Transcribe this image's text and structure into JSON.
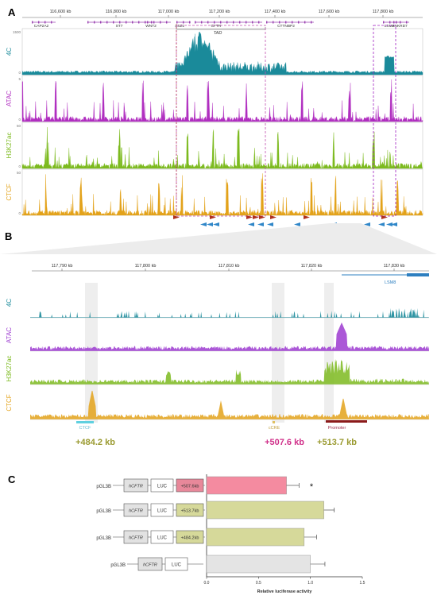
{
  "panels": {
    "a": {
      "label": "A",
      "ticks": [
        "116,600 kb",
        "116,800 kb",
        "117,000 kb",
        "117,200 kb",
        "117,400 kb",
        "117,600 kb",
        "117,800 kb"
      ],
      "genes": [
        "CAP2A2",
        "ST7",
        "WNT2",
        "ASZ1",
        "CFTR",
        "CTTNBP2",
        "LSM8",
        "ANKRD7"
      ],
      "tad_label": "TAD",
      "tracks": [
        {
          "name": "4C",
          "range": "0 - 1500",
          "color": "#1a8a9a"
        },
        {
          "name": "ATAC",
          "range": "0 - 5",
          "color": "#b02ec0"
        },
        {
          "name": "H3K27ac",
          "range": "0 - 50",
          "color": "#7cba1e"
        },
        {
          "name": "CTCF",
          "range": "0 - 50",
          "color": "#e3a21a"
        }
      ],
      "ymax_labels": [
        "1500",
        "5",
        "50",
        "50"
      ],
      "ymin_labels": [
        "0",
        "0",
        "0",
        "0"
      ]
    },
    "b": {
      "label": "B",
      "ticks": [
        "117,790 kb",
        "117,800 kb",
        "117,810 kb",
        "117,820 kb",
        "117,830 kb"
      ],
      "gene": "LSM8",
      "tracks": [
        "4C",
        "ATAC",
        "H3K27ac",
        "CTCF"
      ],
      "features": [
        {
          "name": "CTCF",
          "color": "#5fd0e0",
          "distance": "+484.2 kb",
          "distance_color": "#9a9a30"
        },
        {
          "name": "cCRE",
          "color": "#e0c060",
          "distance": "+507.6 kb",
          "distance_color": "#d0308a"
        },
        {
          "name": "Promoter",
          "color": "#8b1a1a",
          "distance": "+513.7 kb",
          "distance_color": "#9a9a30"
        }
      ]
    },
    "c": {
      "label": "C",
      "constructs": [
        {
          "vector": "pGL3B",
          "promoter": "hCFTR",
          "reporter": "LUC",
          "insert": "+507.6kb",
          "insert_color": "#e8889a"
        },
        {
          "vector": "pGL3B",
          "promoter": "hCFTR",
          "reporter": "LUC",
          "insert": "+513.7kb",
          "insert_color": "#d6d99a"
        },
        {
          "vector": "pGL3B",
          "promoter": "hCFTR",
          "reporter": "LUC",
          "insert": "+484.2kb",
          "insert_color": "#d6d99a"
        },
        {
          "vector": "pGL3B",
          "promoter": "hCFTR",
          "reporter": "LUC",
          "insert": "",
          "insert_color": ""
        }
      ],
      "significance": "*"
    }
  },
  "chart_data": {
    "type": "bar",
    "orientation": "horizontal",
    "categories": [
      "+507.6kb",
      "+513.7kb",
      "+484.2kb",
      "pGL3B hCFTR LUC"
    ],
    "values": [
      0.77,
      1.13,
      0.94,
      1.0
    ],
    "errors": [
      0.12,
      0.1,
      0.12,
      0.14
    ],
    "colors": [
      "#f48ba0",
      "#d6d99a",
      "#d6d99a",
      "#e4e4e4"
    ],
    "xlabel": "Relative luciferase activity",
    "xticks": [
      "0.0",
      "0.5",
      "1.0",
      "1.5"
    ],
    "xlim": [
      0,
      1.5
    ]
  }
}
